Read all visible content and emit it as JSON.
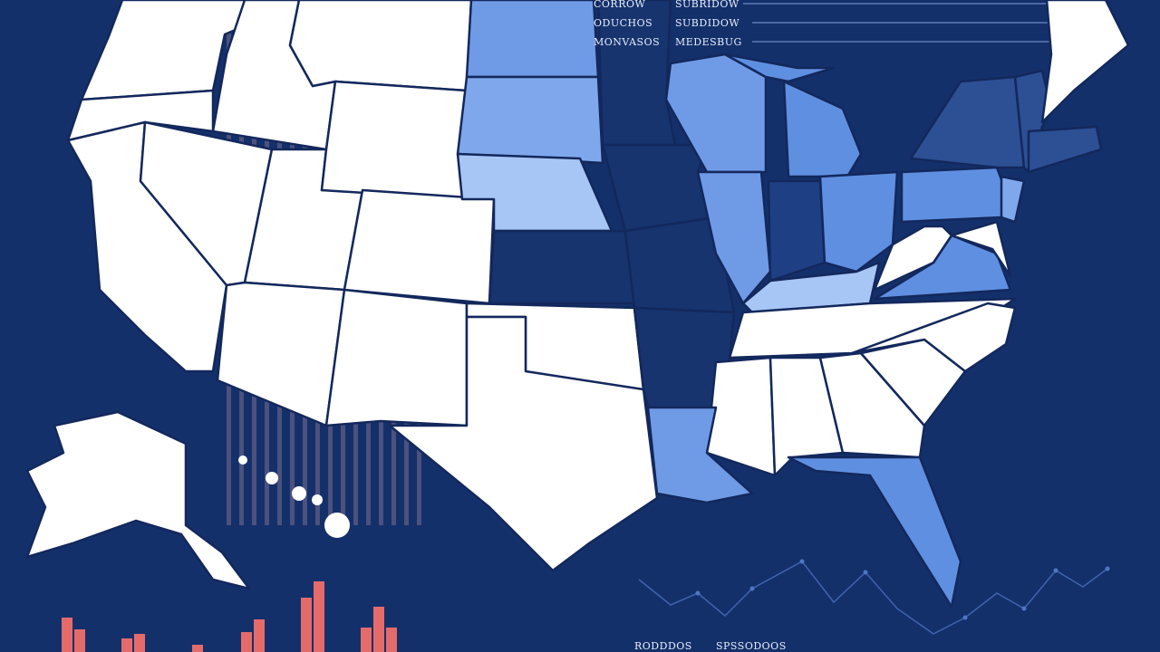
{
  "legend": {
    "rows": [
      [
        "CORROW",
        "SUBRIDOW"
      ],
      [
        "ODUCHOS",
        "SUBDIDOW"
      ],
      [
        "MONVASOS",
        "MEDESBUG"
      ]
    ]
  },
  "footer": [
    "RODDDOS",
    "SPSSODOOS"
  ]
}
